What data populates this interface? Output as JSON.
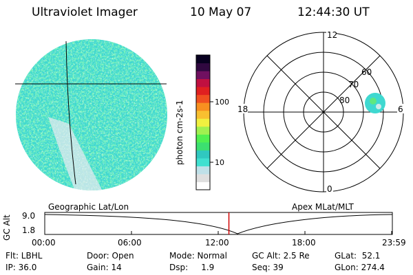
{
  "header": {
    "instrument": "Ultraviolet Imager",
    "date": "10 May 07",
    "time": "12:44:30 UT"
  },
  "colorbar": {
    "label": "photon cm-2s-1",
    "ticks": [
      "100",
      "10"
    ],
    "colors": [
      "#ffffff",
      "#dfdfdf",
      "#bfe0e8",
      "#40e0d0",
      "#30c8c0",
      "#3ce070",
      "#50f050",
      "#a0f050",
      "#f0f040",
      "#f8c030",
      "#f89020",
      "#f05020",
      "#e02020",
      "#c01040",
      "#701060",
      "#300840",
      "#080020"
    ]
  },
  "polar": {
    "label_top": "12",
    "label_left": "18",
    "label_right": "6",
    "label_bottom": "0",
    "lat_labels": [
      "80",
      "70",
      "60"
    ]
  },
  "timeline": {
    "left_label": "Geographic Lat/Lon",
    "right_label": "Apex MLat/MLT",
    "axis_title": "GC Alt",
    "y_top": "9.0",
    "y_bottom": "1.8",
    "ticks": [
      "00:00",
      "06:00",
      "12:00",
      "18:00",
      "23:59"
    ],
    "current_time_marker_hours": 12.74
  },
  "status": {
    "flt": "Flt: LBHL",
    "ip": "IP: 36.0",
    "door": "Door: Open",
    "gain": "Gain: 14",
    "mode": "Mode: Normal",
    "dsp": "Dsp:     1.9",
    "gc_alt": "GC Alt: 2.5 Re",
    "seq": "Seq: 39",
    "glat": "GLat:  52.1",
    "glon": "GLon: 274.4"
  }
}
